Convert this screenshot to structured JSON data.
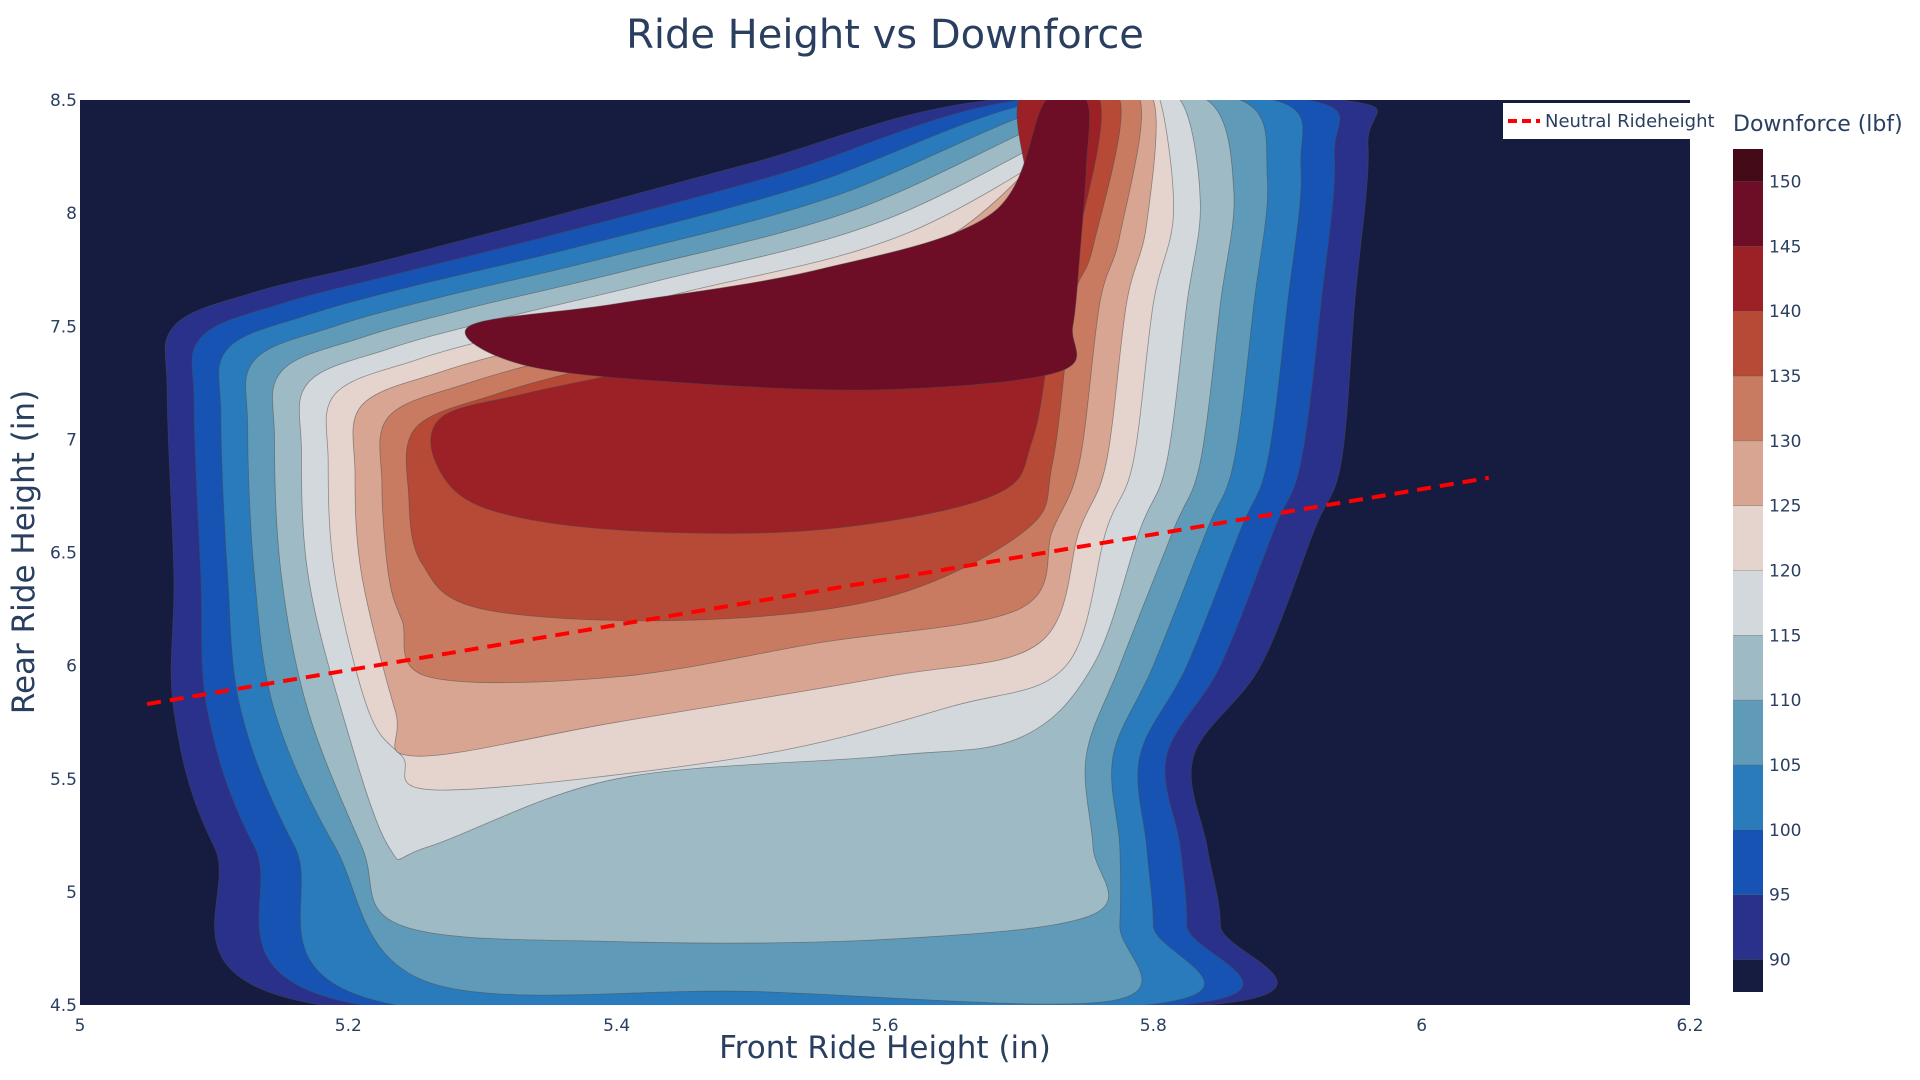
{
  "chart_data": {
    "type": "contour",
    "title": "Ride Height vs Downforce",
    "xlabel": "Front Ride Height (in)",
    "ylabel": "Rear Ride Height (in)",
    "xlim": [
      5,
      6.2
    ],
    "ylim": [
      4.5,
      8.5
    ],
    "x_ticks": [
      5,
      5.2,
      5.4,
      5.6,
      5.8,
      6,
      6.2
    ],
    "x_tick_labels": [
      "5",
      "5.2",
      "5.4",
      "5.6",
      "5.8",
      "6",
      "6.2"
    ],
    "y_ticks": [
      4.5,
      5,
      5.5,
      6,
      6.5,
      7,
      7.5,
      8,
      8.5
    ],
    "y_tick_labels": [
      "4.5",
      "5",
      "5.5",
      "6",
      "6.5",
      "7",
      "7.5",
      "8",
      "8.5"
    ],
    "colorbar": {
      "title": "Downforce (lbf)",
      "range": [
        87.5,
        152.5
      ],
      "ticks": [
        90,
        95,
        100,
        105,
        110,
        115,
        120,
        125,
        130,
        135,
        140,
        145,
        150
      ],
      "tick_labels": [
        "90",
        "95",
        "100",
        "105",
        "110",
        "115",
        "120",
        "125",
        "130",
        "135",
        "140",
        "145",
        "150"
      ],
      "levels": [
        90,
        95,
        100,
        105,
        110,
        115,
        120,
        125,
        130,
        135,
        140,
        145,
        150
      ],
      "colors": [
        "#161c40",
        "#29318a",
        "#1653b3",
        "#2a7bbb",
        "#5f9bb8",
        "#9ebac5",
        "#d3d8dc",
        "#e5d3cd",
        "#d8a592",
        "#c97b62",
        "#b64a36",
        "#9b2126",
        "#6d0d26",
        "#440a18"
      ]
    },
    "contours": [
      {
        "level": 90,
        "points": [
          [
            5.065,
            7.2
          ],
          [
            5.07,
            7.5
          ],
          [
            5.13,
            7.65
          ],
          [
            5.22,
            7.78
          ],
          [
            5.33,
            7.95
          ],
          [
            5.5,
            8.22
          ],
          [
            5.68,
            8.5
          ],
          [
            5.94,
            8.5
          ],
          [
            5.96,
            8.3
          ],
          [
            5.95,
            7.6
          ],
          [
            5.94,
            6.9
          ],
          [
            5.92,
            6.6
          ],
          [
            5.88,
            6.0
          ],
          [
            5.83,
            5.6
          ],
          [
            5.84,
            5.2
          ],
          [
            5.85,
            4.85
          ],
          [
            5.84,
            4.5
          ],
          [
            5.18,
            4.5
          ],
          [
            5.1,
            5.2
          ],
          [
            5.07,
            5.8
          ],
          [
            5.07,
            6.4
          ]
        ]
      },
      {
        "level": 95,
        "points": [
          [
            5.085,
            7.15
          ],
          [
            5.09,
            7.45
          ],
          [
            5.15,
            7.6
          ],
          [
            5.235,
            7.73
          ],
          [
            5.35,
            7.9
          ],
          [
            5.52,
            8.17
          ],
          [
            5.7,
            8.5
          ],
          [
            5.915,
            8.5
          ],
          [
            5.935,
            8.25
          ],
          [
            5.925,
            7.6
          ],
          [
            5.91,
            6.9
          ],
          [
            5.89,
            6.6
          ],
          [
            5.85,
            6.0
          ],
          [
            5.81,
            5.6
          ],
          [
            5.82,
            5.2
          ],
          [
            5.825,
            4.85
          ],
          [
            5.82,
            4.5
          ],
          [
            5.21,
            4.5
          ],
          [
            5.13,
            5.2
          ],
          [
            5.095,
            5.8
          ],
          [
            5.09,
            6.4
          ]
        ]
      },
      {
        "level": 100,
        "points": [
          [
            5.105,
            7.1
          ],
          [
            5.11,
            7.4
          ],
          [
            5.17,
            7.55
          ],
          [
            5.25,
            7.68
          ],
          [
            5.37,
            7.85
          ],
          [
            5.54,
            8.12
          ],
          [
            5.72,
            8.5
          ],
          [
            5.89,
            8.5
          ],
          [
            5.91,
            8.2
          ],
          [
            5.9,
            7.6
          ],
          [
            5.885,
            6.9
          ],
          [
            5.865,
            6.6
          ],
          [
            5.825,
            6.0
          ],
          [
            5.79,
            5.6
          ],
          [
            5.795,
            5.2
          ],
          [
            5.8,
            4.85
          ],
          [
            5.795,
            4.5
          ],
          [
            5.235,
            4.5
          ],
          [
            5.16,
            5.2
          ],
          [
            5.12,
            5.8
          ],
          [
            5.11,
            6.4
          ]
        ]
      },
      {
        "level": 105,
        "points": [
          [
            5.125,
            7.05
          ],
          [
            5.13,
            7.35
          ],
          [
            5.19,
            7.5
          ],
          [
            5.27,
            7.63
          ],
          [
            5.39,
            7.8
          ],
          [
            5.56,
            8.07
          ],
          [
            5.74,
            8.5
          ],
          [
            5.865,
            8.5
          ],
          [
            5.885,
            8.15
          ],
          [
            5.875,
            7.6
          ],
          [
            5.86,
            6.9
          ],
          [
            5.84,
            6.6
          ],
          [
            5.8,
            6.0
          ],
          [
            5.77,
            5.6
          ],
          [
            5.775,
            5.2
          ],
          [
            5.775,
            4.85
          ],
          [
            5.77,
            4.52
          ],
          [
            5.5,
            4.56
          ],
          [
            5.26,
            4.6
          ],
          [
            5.19,
            5.2
          ],
          [
            5.145,
            5.8
          ],
          [
            5.13,
            6.4
          ]
        ]
      },
      {
        "level": 110,
        "points": [
          [
            5.145,
            7.0
          ],
          [
            5.15,
            7.3
          ],
          [
            5.21,
            7.45
          ],
          [
            5.29,
            7.58
          ],
          [
            5.41,
            7.75
          ],
          [
            5.58,
            8.02
          ],
          [
            5.76,
            8.5
          ],
          [
            5.84,
            8.5
          ],
          [
            5.86,
            8.1
          ],
          [
            5.85,
            7.6
          ],
          [
            5.835,
            6.9
          ],
          [
            5.815,
            6.6
          ],
          [
            5.775,
            6.0
          ],
          [
            5.75,
            5.6
          ],
          [
            5.755,
            5.2
          ],
          [
            5.755,
            4.9
          ],
          [
            5.6,
            4.79
          ],
          [
            5.4,
            4.78
          ],
          [
            5.24,
            4.85
          ],
          [
            5.21,
            5.2
          ],
          [
            5.17,
            5.8
          ],
          [
            5.15,
            6.4
          ]
        ]
      },
      {
        "level": 115,
        "points": [
          [
            5.165,
            6.95
          ],
          [
            5.17,
            7.25
          ],
          [
            5.23,
            7.4
          ],
          [
            5.31,
            7.53
          ],
          [
            5.43,
            7.7
          ],
          [
            5.6,
            7.97
          ],
          [
            5.78,
            8.5
          ],
          [
            5.82,
            8.5
          ],
          [
            5.835,
            8.05
          ],
          [
            5.825,
            7.6
          ],
          [
            5.81,
            6.9
          ],
          [
            5.79,
            6.6
          ],
          [
            5.755,
            6.0
          ],
          [
            5.7,
            5.68
          ],
          [
            5.6,
            5.6
          ],
          [
            5.4,
            5.5
          ],
          [
            5.26,
            5.2
          ],
          [
            5.23,
            5.2
          ],
          [
            5.195,
            5.8
          ],
          [
            5.17,
            6.4
          ]
        ]
      },
      {
        "level": 120,
        "points": [
          [
            5.185,
            6.9
          ],
          [
            5.19,
            7.2
          ],
          [
            5.25,
            7.35
          ],
          [
            5.33,
            7.48
          ],
          [
            5.45,
            7.65
          ],
          [
            5.62,
            7.92
          ],
          [
            5.79,
            8.5
          ],
          [
            5.805,
            8.5
          ],
          [
            5.815,
            8.0
          ],
          [
            5.8,
            7.6
          ],
          [
            5.785,
            6.9
          ],
          [
            5.765,
            6.6
          ],
          [
            5.735,
            6.0
          ],
          [
            5.65,
            5.82
          ],
          [
            5.5,
            5.6
          ],
          [
            5.27,
            5.45
          ],
          [
            5.24,
            5.6
          ],
          [
            5.215,
            5.8
          ],
          [
            5.19,
            6.4
          ]
        ]
      },
      {
        "level": 125,
        "points": [
          [
            5.205,
            6.85
          ],
          [
            5.21,
            7.15
          ],
          [
            5.27,
            7.3
          ],
          [
            5.35,
            7.43
          ],
          [
            5.47,
            7.6
          ],
          [
            5.64,
            7.87
          ],
          [
            5.76,
            8.5
          ],
          [
            5.8,
            8.5
          ],
          [
            5.795,
            7.95
          ],
          [
            5.78,
            7.6
          ],
          [
            5.765,
            6.9
          ],
          [
            5.745,
            6.6
          ],
          [
            5.715,
            6.1
          ],
          [
            5.6,
            5.95
          ],
          [
            5.4,
            5.75
          ],
          [
            5.25,
            5.6
          ],
          [
            5.235,
            5.8
          ],
          [
            5.21,
            6.4
          ]
        ]
      },
      {
        "level": 130,
        "points": [
          [
            5.225,
            6.8
          ],
          [
            5.23,
            7.1
          ],
          [
            5.29,
            7.25
          ],
          [
            5.37,
            7.38
          ],
          [
            5.49,
            7.55
          ],
          [
            5.66,
            7.82
          ],
          [
            5.74,
            8.5
          ],
          [
            5.79,
            8.5
          ],
          [
            5.775,
            7.9
          ],
          [
            5.76,
            7.6
          ],
          [
            5.745,
            6.9
          ],
          [
            5.725,
            6.6
          ],
          [
            5.7,
            6.25
          ],
          [
            5.55,
            6.1
          ],
          [
            5.4,
            5.95
          ],
          [
            5.26,
            5.95
          ],
          [
            5.24,
            6.2
          ],
          [
            5.23,
            6.4
          ]
        ]
      },
      {
        "level": 135,
        "points": [
          [
            5.245,
            6.75
          ],
          [
            5.25,
            7.05
          ],
          [
            5.31,
            7.2
          ],
          [
            5.39,
            7.33
          ],
          [
            5.51,
            7.5
          ],
          [
            5.68,
            7.77
          ],
          [
            5.72,
            8.5
          ],
          [
            5.775,
            8.5
          ],
          [
            5.755,
            7.85
          ],
          [
            5.74,
            7.6
          ],
          [
            5.725,
            6.9
          ],
          [
            5.705,
            6.6
          ],
          [
            5.6,
            6.3
          ],
          [
            5.45,
            6.2
          ],
          [
            5.3,
            6.25
          ],
          [
            5.255,
            6.45
          ]
        ]
      },
      {
        "level": 140,
        "points": [
          [
            5.265,
            6.9
          ],
          [
            5.27,
            7.1
          ],
          [
            5.33,
            7.2
          ],
          [
            5.41,
            7.3
          ],
          [
            5.53,
            7.45
          ],
          [
            5.7,
            7.72
          ],
          [
            5.7,
            8.5
          ],
          [
            5.76,
            8.5
          ],
          [
            5.74,
            7.8
          ],
          [
            5.725,
            7.5
          ],
          [
            5.71,
            7.0
          ],
          [
            5.68,
            6.75
          ],
          [
            5.55,
            6.6
          ],
          [
            5.4,
            6.6
          ],
          [
            5.3,
            6.7
          ]
        ]
      },
      {
        "level": 145,
        "points": [
          [
            5.29,
            7.5
          ],
          [
            5.4,
            7.6
          ],
          [
            5.55,
            7.75
          ],
          [
            5.68,
            8.0
          ],
          [
            5.72,
            8.5
          ],
          [
            5.75,
            8.5
          ],
          [
            5.75,
            8.2
          ],
          [
            5.745,
            7.8
          ],
          [
            5.74,
            7.5
          ],
          [
            5.73,
            7.3
          ],
          [
            5.6,
            7.22
          ],
          [
            5.45,
            7.25
          ],
          [
            5.33,
            7.33
          ]
        ]
      }
    ],
    "neutral_rideheight_line": {
      "name": "Neutral Rideheight",
      "x": [
        5.05,
        6.05
      ],
      "y": [
        5.83,
        6.83
      ],
      "color": "#ff0000",
      "dash": "dash"
    }
  },
  "legend": {
    "entry": "Neutral Rideheight"
  }
}
